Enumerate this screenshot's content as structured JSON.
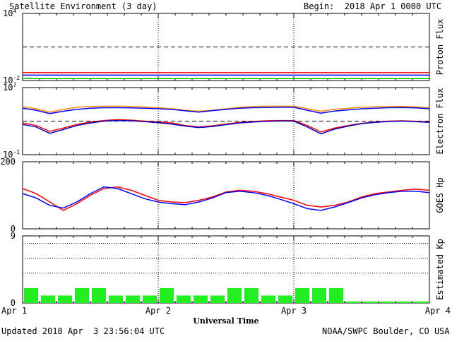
{
  "header": {
    "title": "Satellite Environment (3 day)",
    "begin": "Begin:  2018 Apr 1 0000 UTC"
  },
  "footer": {
    "updated": "Updated 2018 Apr  3 23:56:04 UTC",
    "credit": "NOAA/SWPC Boulder, CO USA"
  },
  "chart_data": [
    {
      "type": "line",
      "panel": "proton",
      "ylabel": "Proton Flux",
      "yscale": "log",
      "ylim": [
        0.01,
        10000
      ],
      "yticks": [
        {
          "base": "10",
          "exp": "4",
          "value": 10000
        },
        {
          "base": "10",
          "exp": "-2",
          "value": 0.01
        }
      ],
      "threshold": 10,
      "x": [
        0,
        0.25,
        0.5,
        0.75,
        1,
        1.25,
        1.5,
        1.75,
        2,
        2.25,
        2.5,
        2.75,
        3
      ],
      "series": [
        {
          "color": "#ff0000",
          "values": [
            0.05,
            0.05,
            0.05,
            0.05,
            0.05,
            0.05,
            0.05,
            0.05,
            0.05,
            0.05,
            0.05,
            0.05,
            0.05
          ]
        },
        {
          "color": "#0000ff",
          "values": [
            0.03,
            0.03,
            0.03,
            0.03,
            0.03,
            0.03,
            0.03,
            0.03,
            0.03,
            0.03,
            0.03,
            0.03,
            0.03
          ]
        },
        {
          "color": "#00cc00",
          "values": [
            0.015,
            0.015,
            0.015,
            0.015,
            0.015,
            0.015,
            0.015,
            0.015,
            0.015,
            0.015,
            0.015,
            0.015,
            0.015
          ]
        }
      ]
    },
    {
      "type": "line",
      "panel": "electron",
      "ylabel": "Electron Flux",
      "yscale": "log",
      "ylim": [
        0.1,
        10000000
      ],
      "yticks": [
        {
          "base": "10",
          "exp": "7",
          "value": 10000000
        },
        {
          "base": "10",
          "exp": "-1",
          "value": 0.1
        }
      ],
      "threshold": 1000,
      "x": [
        0,
        0.1,
        0.2,
        0.3,
        0.4,
        0.5,
        0.6,
        0.7,
        0.8,
        0.9,
        1.0,
        1.1,
        1.2,
        1.3,
        1.4,
        1.5,
        1.6,
        1.7,
        1.8,
        1.9,
        2.0,
        2.1,
        2.2,
        2.3,
        2.4,
        2.5,
        2.6,
        2.7,
        2.8,
        2.9,
        3.0
      ],
      "series": [
        {
          "color": "#ff8c00",
          "values": [
            50000,
            30000,
            12000,
            25000,
            45000,
            55000,
            60000,
            60000,
            55000,
            48000,
            40000,
            30000,
            20000,
            15000,
            20000,
            30000,
            45000,
            55000,
            60000,
            60000,
            60000,
            30000,
            15000,
            25000,
            35000,
            45000,
            50000,
            55000,
            58000,
            50000,
            40000
          ]
        },
        {
          "color": "#0000ff",
          "values": [
            35000,
            20000,
            8000,
            15000,
            25000,
            35000,
            40000,
            40000,
            38000,
            35000,
            30000,
            25000,
            17000,
            12000,
            18000,
            25000,
            35000,
            40000,
            42000,
            45000,
            45000,
            20000,
            9000,
            16000,
            22000,
            30000,
            35000,
            40000,
            42000,
            38000,
            30000
          ]
        },
        {
          "color": "#ff0000",
          "values": [
            600,
            300,
            60,
            150,
            400,
            800,
            1200,
            1500,
            1300,
            1000,
            800,
            600,
            300,
            200,
            280,
            450,
            700,
            900,
            1100,
            1200,
            1200,
            300,
            50,
            150,
            300,
            550,
            800,
            1000,
            1100,
            950,
            800
          ]
        },
        {
          "color": "#0000cc",
          "values": [
            400,
            200,
            35,
            100,
            300,
            600,
            1000,
            1200,
            1100,
            850,
            650,
            450,
            250,
            170,
            230,
            380,
            600,
            800,
            950,
            1050,
            1000,
            200,
            30,
            110,
            250,
            500,
            700,
            900,
            1000,
            850,
            700
          ]
        }
      ]
    },
    {
      "type": "line",
      "panel": "goes_hp",
      "ylabel": "GOES Hp",
      "ylim": [
        0,
        200
      ],
      "yticks": [
        {
          "label": "200",
          "value": 200
        },
        {
          "label": "0",
          "value": 0
        }
      ],
      "x": [
        0,
        0.1,
        0.2,
        0.3,
        0.4,
        0.5,
        0.6,
        0.7,
        0.8,
        0.9,
        1.0,
        1.1,
        1.2,
        1.3,
        1.4,
        1.5,
        1.6,
        1.7,
        1.8,
        1.9,
        2.0,
        2.1,
        2.2,
        2.3,
        2.4,
        2.5,
        2.6,
        2.7,
        2.8,
        2.9,
        3.0
      ],
      "series": [
        {
          "color": "#ff0000",
          "values": [
            120,
            105,
            80,
            55,
            75,
            100,
            120,
            125,
            115,
            100,
            85,
            80,
            78,
            85,
            95,
            110,
            115,
            112,
            105,
            95,
            85,
            70,
            65,
            70,
            80,
            95,
            105,
            110,
            115,
            118,
            115
          ]
        },
        {
          "color": "#0000ff",
          "values": [
            105,
            92,
            70,
            62,
            80,
            105,
            125,
            120,
            105,
            90,
            80,
            75,
            72,
            80,
            92,
            108,
            112,
            108,
            100,
            88,
            75,
            60,
            55,
            65,
            78,
            92,
            102,
            108,
            112,
            112,
            108
          ]
        }
      ]
    },
    {
      "type": "bar",
      "panel": "kp",
      "ylabel": "Estimated Kp",
      "ylim": [
        0,
        9
      ],
      "yticks": [
        {
          "label": "9",
          "value": 9
        },
        {
          "label": "0",
          "value": 0
        }
      ],
      "hlines": [
        4,
        6,
        8
      ],
      "color": "#22ee22",
      "values": [
        2,
        1,
        1,
        2,
        2,
        1,
        1,
        1,
        2,
        1,
        1,
        1,
        2,
        2,
        1,
        1,
        2,
        2,
        2,
        0.2,
        0.2,
        0.2,
        0.2,
        0.2
      ]
    }
  ],
  "x_axis": {
    "labels": [
      "Apr 1",
      "Apr 2",
      "Apr 3",
      "Apr 4"
    ],
    "title": "Universal Time",
    "xlim": [
      0,
      3
    ]
  }
}
